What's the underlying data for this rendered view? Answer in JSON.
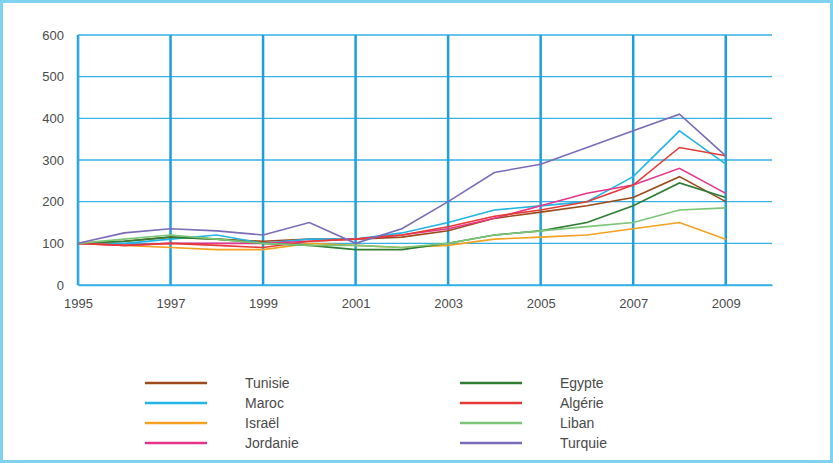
{
  "chart_data": {
    "type": "line",
    "x": [
      1995,
      1996,
      1997,
      1998,
      1999,
      2000,
      2001,
      2002,
      2003,
      2004,
      2005,
      2006,
      2007,
      2008,
      2009
    ],
    "xlim": [
      1995,
      2010
    ],
    "xticks": [
      1995,
      1997,
      1999,
      2001,
      2003,
      2005,
      2007,
      2009
    ],
    "ylim": [
      0,
      600
    ],
    "yticks": [
      0,
      100,
      200,
      300,
      400,
      500,
      600
    ],
    "grid": true,
    "legend": "bottom",
    "series": [
      {
        "name": "Tunisie",
        "color": "#9c4a1a",
        "values": [
          100,
          105,
          115,
          110,
          105,
          110,
          110,
          115,
          130,
          160,
          175,
          190,
          210,
          260,
          200
        ]
      },
      {
        "name": "Maroc",
        "color": "#23b4e6",
        "values": [
          100,
          100,
          110,
          120,
          100,
          110,
          110,
          125,
          150,
          180,
          190,
          200,
          260,
          370,
          290
        ]
      },
      {
        "name": "Israël",
        "color": "#f5a01e",
        "values": [
          100,
          95,
          90,
          85,
          85,
          100,
          95,
          90,
          95,
          110,
          115,
          120,
          135,
          150,
          110
        ]
      },
      {
        "name": "Jordanie",
        "color": "#e8338b",
        "values": [
          100,
          95,
          100,
          100,
          100,
          105,
          110,
          120,
          135,
          160,
          190,
          220,
          240,
          280,
          220
        ]
      },
      {
        "name": "Egypte",
        "color": "#2e7d32",
        "values": [
          100,
          105,
          115,
          110,
          100,
          95,
          85,
          85,
          100,
          120,
          130,
          150,
          190,
          245,
          210
        ]
      },
      {
        "name": "Algérie",
        "color": "#e53935",
        "values": [
          100,
          95,
          100,
          95,
          90,
          105,
          110,
          120,
          140,
          165,
          180,
          200,
          240,
          330,
          310
        ]
      },
      {
        "name": "Liban",
        "color": "#7cc576",
        "values": [
          100,
          110,
          120,
          110,
          100,
          95,
          95,
          90,
          100,
          120,
          130,
          140,
          150,
          180,
          185
        ]
      },
      {
        "name": "Turquie",
        "color": "#7b6bb8",
        "values": [
          100,
          125,
          135,
          130,
          120,
          150,
          100,
          135,
          200,
          270,
          290,
          330,
          370,
          410,
          310
        ]
      }
    ]
  }
}
